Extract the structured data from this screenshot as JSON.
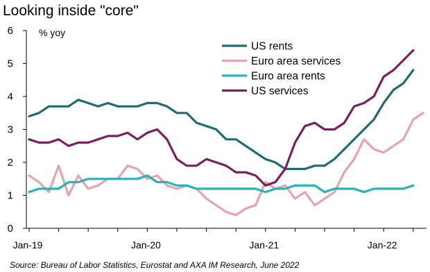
{
  "chart_data": {
    "type": "line",
    "title": "Looking inside \"core\"",
    "ylabel": "% yoy",
    "xlabel": "",
    "source": "Source: Bureau of Labor Statistics, Eurostat and AXA IM Research, June 2022",
    "ylim": [
      0,
      6
    ],
    "y_ticks": [
      "0",
      "1",
      "2",
      "3",
      "4",
      "5",
      "6"
    ],
    "x_ticks": [
      "Jan-19",
      "Jan-20",
      "Jan-21",
      "Jan-22"
    ],
    "x_start": "2019-01",
    "grid": false,
    "legend_position": "top-right",
    "series": [
      {
        "name": "US rents",
        "color": "#1f6b70",
        "values": [
          3.4,
          3.5,
          3.7,
          3.7,
          3.7,
          3.9,
          3.8,
          3.7,
          3.8,
          3.7,
          3.7,
          3.7,
          3.8,
          3.8,
          3.7,
          3.5,
          3.5,
          3.2,
          3.1,
          3.0,
          2.7,
          2.7,
          2.5,
          2.3,
          2.1,
          2.0,
          1.8,
          1.8,
          1.8,
          1.9,
          1.9,
          2.1,
          2.4,
          2.7,
          3.0,
          3.3,
          3.8,
          4.2,
          4.4,
          4.8
        ]
      },
      {
        "name": "Euro area services",
        "color": "#e8a3aa",
        "values": [
          1.6,
          1.4,
          1.1,
          1.9,
          1.0,
          1.6,
          1.2,
          1.3,
          1.5,
          1.5,
          1.9,
          1.8,
          1.5,
          1.6,
          1.3,
          1.2,
          1.3,
          1.2,
          0.9,
          0.7,
          0.5,
          0.4,
          0.6,
          0.7,
          1.4,
          1.2,
          1.3,
          0.9,
          1.1,
          0.7,
          0.9,
          1.1,
          1.7,
          2.1,
          2.7,
          2.4,
          2.3,
          2.5,
          2.7,
          3.3,
          3.5
        ]
      },
      {
        "name": "Euro area rents",
        "color": "#27b3b8",
        "values": [
          1.1,
          1.2,
          1.2,
          1.2,
          1.4,
          1.4,
          1.5,
          1.5,
          1.5,
          1.5,
          1.5,
          1.5,
          1.6,
          1.4,
          1.4,
          1.3,
          1.3,
          1.2,
          1.2,
          1.2,
          1.2,
          1.2,
          1.2,
          1.2,
          1.1,
          1.2,
          1.2,
          1.3,
          1.3,
          1.3,
          1.1,
          1.2,
          1.2,
          1.2,
          1.1,
          1.2,
          1.2,
          1.2,
          1.2,
          1.3
        ]
      },
      {
        "name": "US services",
        "color": "#7b1f5b",
        "values": [
          2.7,
          2.6,
          2.6,
          2.7,
          2.5,
          2.6,
          2.6,
          2.7,
          2.8,
          2.8,
          2.9,
          2.7,
          2.9,
          3.0,
          2.7,
          2.1,
          1.9,
          1.9,
          2.1,
          2.0,
          1.9,
          1.7,
          1.7,
          1.6,
          1.3,
          1.4,
          1.8,
          2.6,
          3.1,
          3.2,
          3.0,
          3.0,
          3.2,
          3.7,
          3.8,
          4.0,
          4.6,
          4.8,
          5.1,
          5.4
        ]
      }
    ]
  }
}
